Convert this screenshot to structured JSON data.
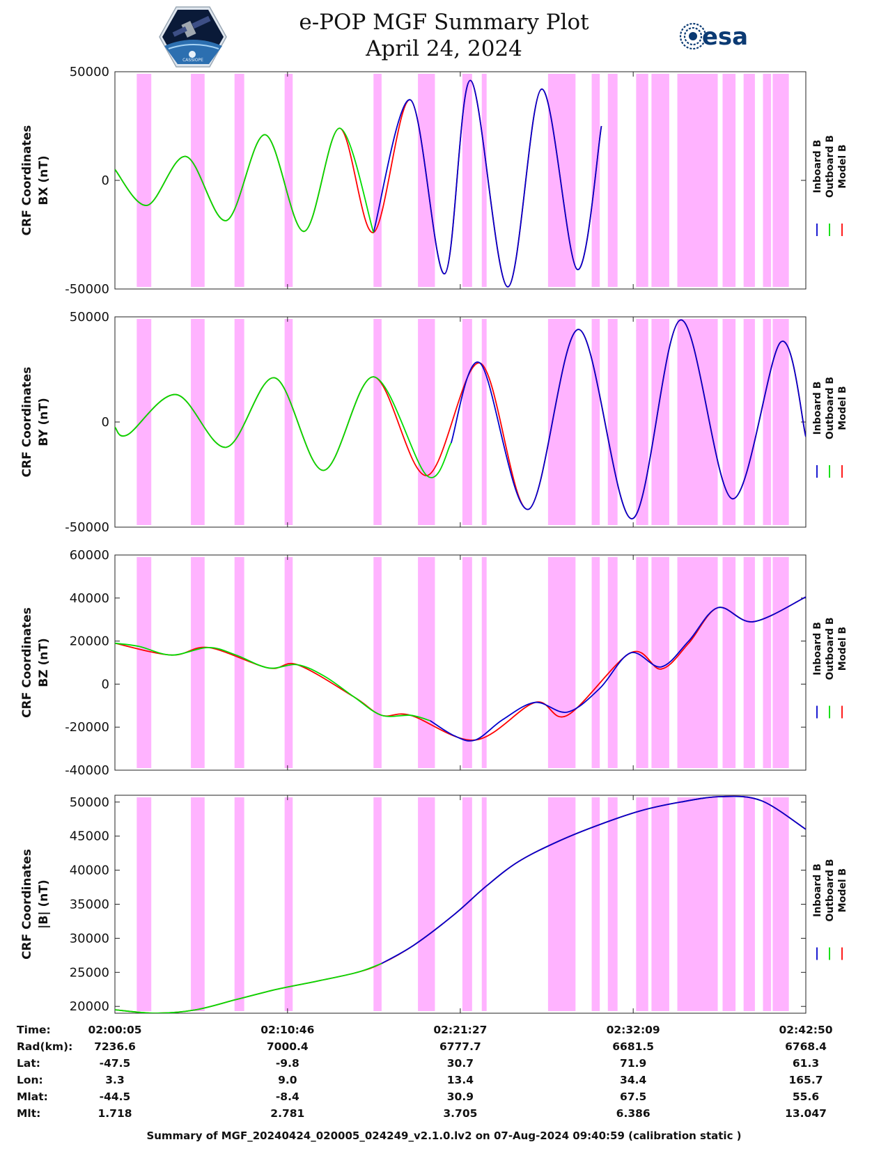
{
  "header": {
    "title": "e-POP MGF Summary Plot",
    "date": "April 24, 2024",
    "left_logo": "cassiope-satellite-logo",
    "right_logo": "esa-logo",
    "right_logo_text": "esa"
  },
  "colors": {
    "inboard": "#0000cc",
    "outboard": "#00dd00",
    "model": "#ff0000",
    "highlight": "#ffb3ff"
  },
  "chart_data": [
    {
      "type": "line",
      "ylabel_line1": "CRF Coordinates",
      "ylabel_line2": "BX (nT)",
      "ylim": [
        -50000,
        50000
      ],
      "yticks": [
        -50000,
        0,
        50000
      ],
      "legend": [
        "Inboard B",
        "Outboard B",
        "Model B"
      ],
      "x_minutes": [
        0.0,
        2.0,
        4.4,
        6.9,
        9.3,
        11.7,
        13.9,
        16.0,
        18.3,
        20.4,
        22.0,
        24.3,
        26.4,
        28.6,
        30.1,
        33.3,
        35.1,
        37.7,
        40.2,
        42.75
      ],
      "series": [
        {
          "name": "Outboard B",
          "values": [
            5000,
            -11500,
            11000,
            -18500,
            21000,
            -23500,
            24000,
            -24000,
            null,
            null,
            null,
            null,
            null,
            null,
            null,
            null,
            null,
            null,
            null,
            null
          ]
        },
        {
          "name": "Inboard B",
          "values": [
            null,
            null,
            null,
            null,
            null,
            null,
            null,
            -24000,
            37000,
            -43000,
            46000,
            -49000,
            42000,
            -41000,
            25000,
            null,
            null,
            null,
            null,
            null
          ]
        },
        {
          "name": "Model B",
          "values": [
            5000,
            -11500,
            11000,
            -18500,
            21000,
            -23500,
            24000,
            -24000,
            37000,
            -43000,
            46000,
            -49000,
            42000,
            -41000,
            25000,
            null,
            null,
            null,
            null,
            null
          ]
        }
      ]
    },
    {
      "type": "line",
      "ylabel_line1": "CRF Coordinates",
      "ylabel_line2": "BY (nT)",
      "ylim": [
        -50000,
        50000
      ],
      "yticks": [
        -50000,
        0,
        50000
      ],
      "legend": [
        "Inboard B",
        "Outboard B",
        "Model B"
      ],
      "series": [
        {
          "name": "Outboard B",
          "points": [
            [
              0.0,
              -2500
            ],
            [
              0.8,
              -6000
            ],
            [
              3.8,
              13000
            ],
            [
              6.9,
              -12000
            ],
            [
              9.9,
              21000
            ],
            [
              12.9,
              -23000
            ],
            [
              16.0,
              21500
            ],
            [
              19.3,
              -25500
            ],
            [
              20.8,
              -10000
            ]
          ]
        },
        {
          "name": "Inboard B",
          "points": [
            [
              20.8,
              -10000
            ],
            [
              22.6,
              28000
            ],
            [
              25.6,
              -41500
            ],
            [
              28.7,
              44000
            ],
            [
              32.0,
              -46000
            ],
            [
              35.0,
              48500
            ],
            [
              38.2,
              -36500
            ],
            [
              41.2,
              38000
            ],
            [
              42.75,
              -7000
            ]
          ]
        },
        {
          "name": "Model B",
          "points": [
            [
              0.0,
              -2500
            ],
            [
              0.8,
              -6000
            ],
            [
              3.8,
              13000
            ],
            [
              6.9,
              -12000
            ],
            [
              9.9,
              21000
            ],
            [
              12.9,
              -23000
            ],
            [
              16.0,
              21500
            ],
            [
              19.3,
              -25500
            ],
            [
              22.6,
              28000
            ],
            [
              25.6,
              -41500
            ],
            [
              28.7,
              44000
            ],
            [
              32.0,
              -46000
            ],
            [
              35.0,
              48500
            ],
            [
              38.2,
              -36500
            ],
            [
              41.2,
              38000
            ],
            [
              42.75,
              -7000
            ]
          ]
        }
      ]
    },
    {
      "type": "line",
      "ylabel_line1": "CRF Coordinates",
      "ylabel_line2": "BZ (nT)",
      "ylim": [
        -40000,
        60000
      ],
      "yticks": [
        -40000,
        -20000,
        0,
        20000,
        40000,
        60000
      ],
      "legend": [
        "Inboard B",
        "Outboard B",
        "Model B"
      ],
      "series": [
        {
          "name": "Outboard B",
          "points": [
            [
              0.0,
              19000
            ],
            [
              1.5,
              17500
            ],
            [
              3.5,
              13500
            ],
            [
              5.8,
              17000
            ],
            [
              7.5,
              13500
            ],
            [
              9.5,
              7500
            ],
            [
              11.3,
              9000
            ],
            [
              13.0,
              3500
            ],
            [
              14.8,
              -6000
            ],
            [
              16.5,
              -14500
            ],
            [
              18.3,
              -14500
            ],
            [
              19.5,
              -17000
            ]
          ]
        },
        {
          "name": "Inboard B",
          "points": [
            [
              19.5,
              -17000
            ],
            [
              21.0,
              -24000
            ],
            [
              22.3,
              -26000
            ],
            [
              24.0,
              -16500
            ],
            [
              26.0,
              -8500
            ],
            [
              28.0,
              -13000
            ],
            [
              30.0,
              -2000
            ],
            [
              31.9,
              14500
            ],
            [
              33.8,
              8000
            ],
            [
              35.5,
              20000
            ],
            [
              37.3,
              35500
            ],
            [
              39.5,
              29000
            ],
            [
              42.75,
              40500
            ]
          ]
        },
        {
          "name": "Model B",
          "points": [
            [
              0.0,
              19000
            ],
            [
              3.5,
              13500
            ],
            [
              5.8,
              17000
            ],
            [
              9.5,
              7500
            ],
            [
              11.3,
              9000
            ],
            [
              14.8,
              -6000
            ],
            [
              16.5,
              -14500
            ],
            [
              18.3,
              -14500
            ],
            [
              22.3,
              -26000
            ],
            [
              26.0,
              -8500
            ],
            [
              28.0,
              -14500
            ],
            [
              31.9,
              14500
            ],
            [
              33.8,
              7000
            ],
            [
              35.5,
              19000
            ],
            [
              37.3,
              35500
            ],
            [
              39.5,
              29000
            ],
            [
              42.75,
              40500
            ]
          ]
        }
      ]
    },
    {
      "type": "line",
      "ylabel_line1": "CRF Coordinates",
      "ylabel_line2": "|B| (nT)",
      "ylim": [
        19000,
        51000
      ],
      "yticks": [
        20000,
        25000,
        30000,
        35000,
        40000,
        45000,
        50000
      ],
      "legend": [
        "Inboard B",
        "Outboard B",
        "Model B"
      ],
      "series": [
        {
          "name": "Outboard B",
          "points": [
            [
              0.0,
              19500
            ],
            [
              2.5,
              19000
            ],
            [
              5.0,
              19500
            ],
            [
              7.5,
              21000
            ],
            [
              10.0,
              22500
            ],
            [
              12.5,
              23700
            ],
            [
              15.0,
              25000
            ],
            [
              16.5,
              26300
            ]
          ]
        },
        {
          "name": "Inboard B",
          "points": [
            [
              16.5,
              26300
            ],
            [
              18.5,
              29000
            ],
            [
              21.0,
              33500
            ],
            [
              23.0,
              37700
            ],
            [
              25.0,
              41300
            ],
            [
              27.5,
              44300
            ],
            [
              30.0,
              46700
            ],
            [
              32.5,
              48700
            ],
            [
              35.0,
              50000
            ],
            [
              37.5,
              50800
            ],
            [
              40.0,
              50200
            ],
            [
              42.75,
              46000
            ]
          ]
        },
        {
          "name": "Model B",
          "points": [
            [
              0.0,
              19500
            ],
            [
              2.5,
              19000
            ],
            [
              5.0,
              19500
            ],
            [
              7.5,
              21000
            ],
            [
              10.0,
              22500
            ],
            [
              12.5,
              23700
            ],
            [
              15.0,
              25000
            ],
            [
              16.5,
              26300
            ],
            [
              18.5,
              29000
            ],
            [
              21.0,
              33500
            ],
            [
              23.0,
              37700
            ],
            [
              25.0,
              41300
            ],
            [
              27.5,
              44300
            ],
            [
              30.0,
              46700
            ],
            [
              32.5,
              48700
            ],
            [
              35.0,
              50000
            ],
            [
              37.5,
              50800
            ],
            [
              40.0,
              50200
            ],
            [
              42.75,
              46000
            ]
          ]
        }
      ]
    }
  ],
  "highlight_intervals_minutes": [
    [
      1.35,
      2.25
    ],
    [
      4.7,
      5.55
    ],
    [
      7.4,
      8.0
    ],
    [
      10.5,
      11.0
    ],
    [
      16.0,
      16.5
    ],
    [
      18.75,
      19.8
    ],
    [
      21.5,
      22.1
    ],
    [
      22.7,
      23.0
    ],
    [
      26.8,
      28.5
    ],
    [
      29.5,
      30.0
    ],
    [
      30.5,
      31.1
    ],
    [
      32.25,
      33.0
    ],
    [
      33.2,
      34.3
    ],
    [
      34.8,
      37.3
    ],
    [
      37.6,
      38.4
    ],
    [
      38.9,
      39.6
    ],
    [
      40.1,
      40.6
    ],
    [
      40.7,
      41.7
    ]
  ],
  "x_axis": {
    "min_minutes": 0.0,
    "max_minutes": 42.75
  },
  "table": {
    "row_labels": [
      "Time:",
      "Rad(km):",
      "Lat:",
      "Lon:",
      "Mlat:",
      "Mlt:"
    ],
    "columns": [
      {
        "x_minutes": 0.0,
        "values": [
          "02:00:05",
          "7236.6",
          "-47.5",
          "3.3",
          "-44.5",
          "1.718"
        ]
      },
      {
        "x_minutes": 10.68,
        "values": [
          "02:10:46",
          "7000.4",
          "-9.8",
          "9.0",
          "-8.4",
          "2.781"
        ]
      },
      {
        "x_minutes": 21.37,
        "values": [
          "02:21:27",
          "6777.7",
          "30.7",
          "13.4",
          "30.9",
          "3.705"
        ]
      },
      {
        "x_minutes": 32.07,
        "values": [
          "02:32:09",
          "6681.5",
          "71.9",
          "34.4",
          "67.5",
          "6.386"
        ]
      },
      {
        "x_minutes": 42.75,
        "values": [
          "02:42:50",
          "6768.4",
          "61.3",
          "165.7",
          "55.6",
          "13.047"
        ]
      }
    ]
  },
  "footer": "Summary of MGF_20240424_020005_024249_v2.1.0.lv2 on 07-Aug-2024 09:40:59 (calibration static )"
}
